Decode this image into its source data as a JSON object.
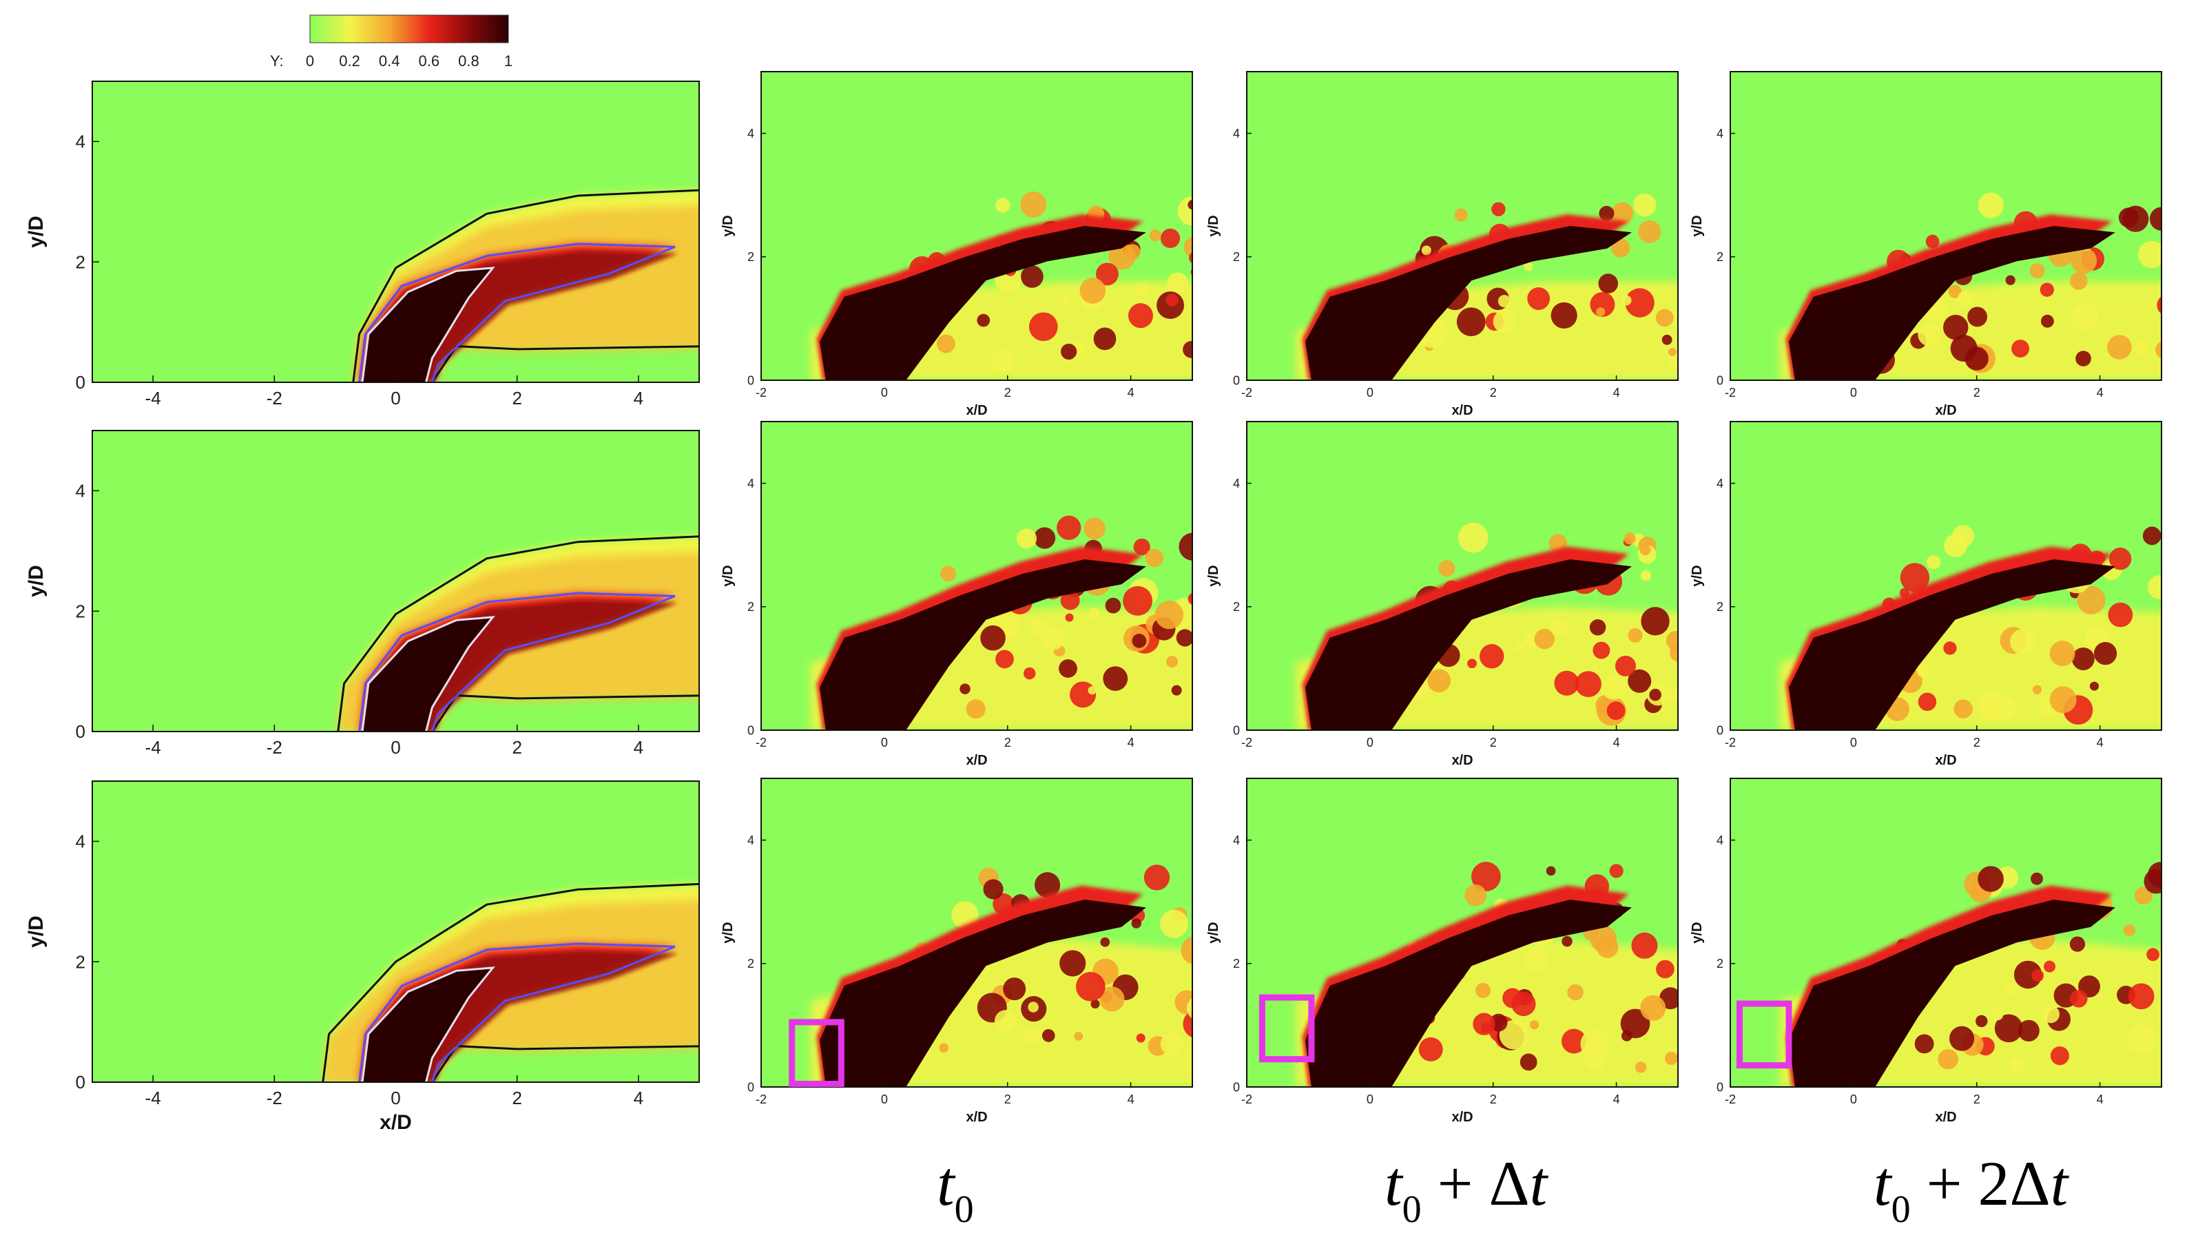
{
  "colorbar": {
    "variable_label": "Y:",
    "ticks": [
      "0",
      "0.2",
      "0.4",
      "0.6",
      "0.8",
      "1"
    ],
    "colors": [
      "#8cfc5a",
      "#f2f44a",
      "#f4a830",
      "#e8241a",
      "#8a0a0a",
      "#2a0000"
    ]
  },
  "time_labels": [
    {
      "base": "t",
      "sub": "0",
      "rest": ""
    },
    {
      "base": "t",
      "sub": "0",
      "op": " + ",
      "upright": "Δ",
      "tail": "t"
    },
    {
      "base": "t",
      "sub": "0",
      "op": " + ",
      "upright": "2Δ",
      "tail": "t"
    }
  ],
  "chart_data": [
    {
      "type": "heatmap",
      "panel": "mean-row1",
      "xlabel": "",
      "ylabel": "y/D",
      "xlim": [
        -5,
        5
      ],
      "ylim": [
        0,
        5
      ],
      "xticks": [
        "-4",
        "-2",
        "0",
        "2",
        "4"
      ],
      "yticks": [
        "0",
        "2",
        "4"
      ]
    },
    {
      "type": "heatmap",
      "panel": "mean-row2",
      "xlabel": "",
      "ylabel": "y/D",
      "xlim": [
        -5,
        5
      ],
      "ylim": [
        0,
        5
      ],
      "xticks": [
        "-4",
        "-2",
        "0",
        "2",
        "4"
      ],
      "yticks": [
        "0",
        "2",
        "4"
      ]
    },
    {
      "type": "heatmap",
      "panel": "mean-row3",
      "xlabel": "x/D",
      "ylabel": "y/D",
      "xlim": [
        -5,
        5
      ],
      "ylim": [
        0,
        5
      ],
      "xticks": [
        "-4",
        "-2",
        "0",
        "2",
        "4"
      ],
      "yticks": [
        "0",
        "2",
        "4"
      ]
    },
    {
      "type": "heatmap",
      "panel": "inst-r1-t0",
      "xlabel": "x/D",
      "ylabel": "y/D",
      "xlim": [
        -2,
        5
      ],
      "ylim": [
        0,
        5
      ],
      "xticks": [
        "-2",
        "0",
        "2",
        "4"
      ],
      "yticks": [
        "0",
        "2",
        "4"
      ]
    },
    {
      "type": "heatmap",
      "panel": "inst-r1-t1",
      "xlabel": "x/D",
      "ylabel": "y/D",
      "xlim": [
        -2,
        5
      ],
      "ylim": [
        0,
        5
      ],
      "xticks": [
        "-2",
        "0",
        "2",
        "4"
      ],
      "yticks": [
        "0",
        "2",
        "4"
      ]
    },
    {
      "type": "heatmap",
      "panel": "inst-r1-t2",
      "xlabel": "x/D",
      "ylabel": "y/D",
      "xlim": [
        -2,
        5
      ],
      "ylim": [
        0,
        5
      ],
      "xticks": [
        "-2",
        "0",
        "2",
        "4"
      ],
      "yticks": [
        "0",
        "2",
        "4"
      ]
    },
    {
      "type": "heatmap",
      "panel": "inst-r2-t0",
      "xlabel": "x/D",
      "ylabel": "y/D",
      "xlim": [
        -2,
        5
      ],
      "ylim": [
        0,
        5
      ],
      "xticks": [
        "-2",
        "0",
        "2",
        "4"
      ],
      "yticks": [
        "0",
        "2",
        "4"
      ]
    },
    {
      "type": "heatmap",
      "panel": "inst-r2-t1",
      "xlabel": "x/D",
      "ylabel": "y/D",
      "xlim": [
        -2,
        5
      ],
      "ylim": [
        0,
        5
      ],
      "xticks": [
        "-2",
        "0",
        "2",
        "4"
      ],
      "yticks": [
        "0",
        "2",
        "4"
      ]
    },
    {
      "type": "heatmap",
      "panel": "inst-r2-t2",
      "xlabel": "x/D",
      "ylabel": "y/D",
      "xlim": [
        -2,
        5
      ],
      "ylim": [
        0,
        5
      ],
      "xticks": [
        "-2",
        "0",
        "2",
        "4"
      ],
      "yticks": [
        "0",
        "2",
        "4"
      ]
    },
    {
      "type": "heatmap",
      "panel": "inst-r3-t0",
      "xlabel": "x/D",
      "ylabel": "y/D",
      "xlim": [
        -2,
        5
      ],
      "ylim": [
        0,
        5
      ],
      "xticks": [
        "-2",
        "0",
        "2",
        "4"
      ],
      "yticks": [
        "0",
        "2",
        "4"
      ],
      "highlight_box": {
        "x": [
          -1.5,
          -0.7
        ],
        "y": [
          0.05,
          1.05
        ],
        "color": "#e436e8"
      }
    },
    {
      "type": "heatmap",
      "panel": "inst-r3-t1",
      "xlabel": "x/D",
      "ylabel": "y/D",
      "xlim": [
        -2,
        5
      ],
      "ylim": [
        0,
        5
      ],
      "xticks": [
        "-2",
        "0",
        "2",
        "4"
      ],
      "yticks": [
        "0",
        "2",
        "4"
      ],
      "highlight_box": {
        "x": [
          -1.75,
          -0.95
        ],
        "y": [
          0.45,
          1.45
        ],
        "color": "#e436e8"
      }
    },
    {
      "type": "heatmap",
      "panel": "inst-r3-t2",
      "xlabel": "x/D",
      "ylabel": "y/D",
      "xlim": [
        -2,
        5
      ],
      "ylim": [
        0,
        5
      ],
      "xticks": [
        "-2",
        "0",
        "2",
        "4"
      ],
      "yticks": [
        "0",
        "2",
        "4"
      ],
      "highlight_box": {
        "x": [
          -1.85,
          -1.05
        ],
        "y": [
          0.35,
          1.35
        ],
        "color": "#e436e8"
      }
    }
  ]
}
